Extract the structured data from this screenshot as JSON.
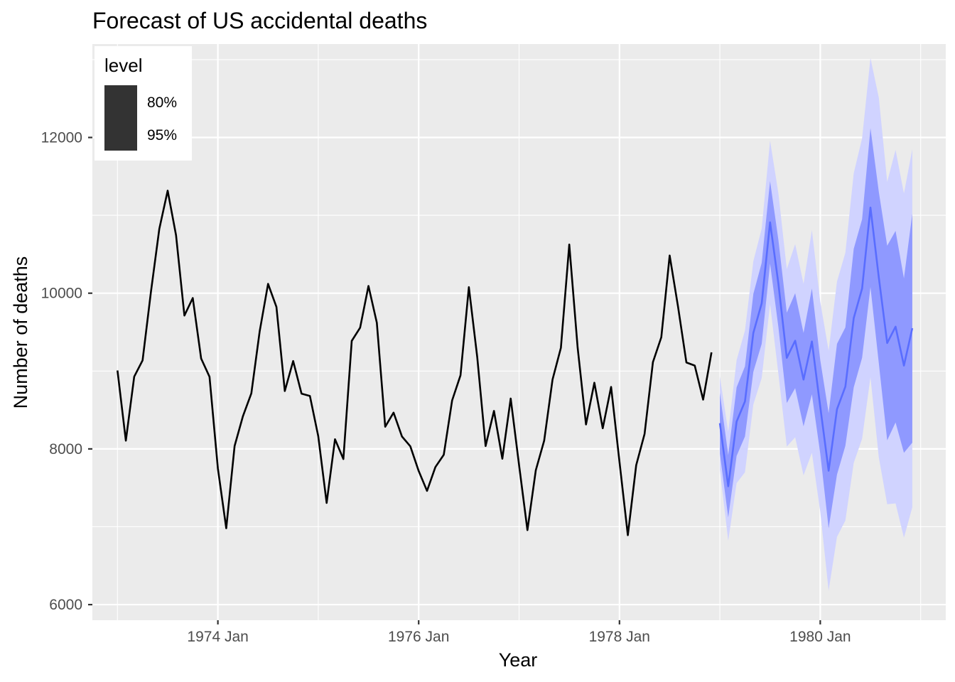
{
  "chart_data": {
    "type": "line",
    "title": "Forecast of US accidental deaths",
    "xlabel": "Year",
    "ylabel": "Number of deaths",
    "x_ticks": [
      "1974 Jan",
      "1976 Jan",
      "1978 Jan",
      "1980 Jan"
    ],
    "y_ticks": [
      "6000",
      "8000",
      "10000",
      "12000"
    ],
    "xlim": [
      "1972-10",
      "1981-04"
    ],
    "ylim": [
      5800,
      13200
    ],
    "grid": true,
    "legend": {
      "title": "level",
      "position": "top-left",
      "entries": [
        "80%",
        "95%"
      ]
    },
    "colors": {
      "panel": "#ebebeb",
      "grid": "#ffffff",
      "history": "#000000",
      "forecast": "#596dff",
      "band80": "#8f99ff",
      "band95": "#d0d3ff",
      "legend_key": "#333333"
    },
    "history": {
      "start": "1973-01",
      "values": [
        9007,
        8106,
        8928,
        9137,
        10017,
        10826,
        11317,
        10744,
        9713,
        9938,
        9161,
        8927,
        7750,
        6981,
        8038,
        8422,
        8714,
        9512,
        10120,
        9823,
        8743,
        9129,
        8710,
        8680,
        8162,
        7306,
        8124,
        7870,
        9387,
        9556,
        10093,
        9620,
        8285,
        8466,
        8160,
        8034,
        7717,
        7461,
        7767,
        7925,
        8623,
        8945,
        10078,
        9179,
        8037,
        8488,
        7874,
        8647,
        7792,
        6957,
        7726,
        8106,
        8890,
        9299,
        10625,
        9302,
        8314,
        8850,
        8265,
        8796,
        7836,
        6892,
        7791,
        8192,
        9115,
        9434,
        10484,
        9827,
        9110,
        9070,
        8633,
        9240
      ]
    },
    "forecast": {
      "start": "1979-01",
      "mean": [
        8330,
        7520,
        8350,
        8610,
        9490,
        9870,
        10910,
        10120,
        9170,
        9390,
        8890,
        9380,
        8540,
        7720,
        8510,
        8800,
        9680,
        10060,
        11100,
        10200,
        9360,
        9570,
        9070,
        9550
      ],
      "lo80": [
        7940,
        7120,
        7910,
        8160,
        8990,
        9350,
        10380,
        9560,
        8590,
        8780,
        8290,
        8700,
        7940,
        6980,
        7670,
        8040,
        8790,
        9170,
        10080,
        9100,
        8110,
        8340,
        7950,
        8080
      ],
      "hi80": [
        8720,
        7920,
        8790,
        9060,
        9990,
        10390,
        11440,
        10680,
        9750,
        10000,
        9490,
        10060,
        9140,
        8460,
        9350,
        9560,
        10570,
        10950,
        12120,
        11300,
        10610,
        10800,
        10190,
        11020
      ],
      "lo95": [
        7730,
        6820,
        7560,
        7700,
        8570,
        8910,
        9860,
        8960,
        8030,
        8150,
        7660,
        7950,
        7190,
        6180,
        6870,
        7080,
        7820,
        8130,
        8920,
        7890,
        7290,
        7300,
        6860,
        7250
      ],
      "hi95": [
        8930,
        8220,
        9140,
        9520,
        10410,
        10830,
        11960,
        11280,
        10310,
        10630,
        10120,
        10810,
        9890,
        9260,
        10150,
        10520,
        11540,
        11990,
        13020,
        12510,
        11430,
        11840,
        11280,
        11850
      ]
    }
  }
}
